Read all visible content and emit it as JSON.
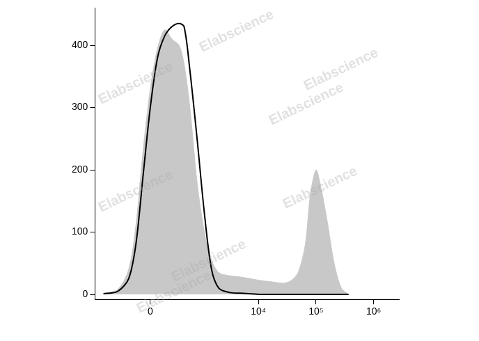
{
  "chart_data": {
    "type": "histogram",
    "x": [
      -843,
      -452,
      -260,
      -162,
      -78,
      0,
      78,
      162,
      260,
      378,
      479,
      620,
      843,
      1141,
      1529,
      2050,
      3160,
      4870,
      7520,
      11570,
      17850,
      27480,
      36700,
      48900,
      65200,
      79800,
      100500,
      122900,
      155000,
      206700,
      275800,
      367900
    ],
    "series": [
      {
        "type": "area",
        "color": "#c8c8c8",
        "values": [
          2,
          8,
          40,
          110,
          230,
          330,
          395,
          425,
          410,
          400,
          370,
          300,
          180,
          100,
          55,
          35,
          30,
          28,
          25,
          22,
          20,
          18,
          22,
          35,
          80,
          160,
          200,
          170,
          120,
          50,
          10,
          0
        ]
      },
      {
        "type": "line",
        "color": "#000000",
        "values": [
          1,
          5,
          25,
          80,
          190,
          300,
          380,
          415,
          430,
          435,
          430,
          360,
          250,
          130,
          40,
          10,
          3,
          2,
          1,
          0,
          0,
          0,
          0,
          0,
          0,
          0,
          0,
          0,
          0,
          0,
          0,
          0
        ]
      }
    ],
    "xlim": [
      -1200,
      2750000
    ],
    "xticks": [
      {
        "value": 0,
        "label": "0"
      },
      {
        "value": 10000,
        "label": "10⁴"
      },
      {
        "value": 100000,
        "label": "10⁵"
      },
      {
        "value": 1000000,
        "label": "10⁶"
      }
    ],
    "ylim": [
      -8,
      460
    ],
    "yticks": [
      0,
      100,
      200,
      300,
      400
    ],
    "grid": false,
    "annotations": [
      "Elabscience",
      "Elabscience",
      "Elabscience",
      "Elabscience",
      "Elabscience",
      "Elabscience",
      "Elabscience",
      "Elabscience"
    ]
  }
}
